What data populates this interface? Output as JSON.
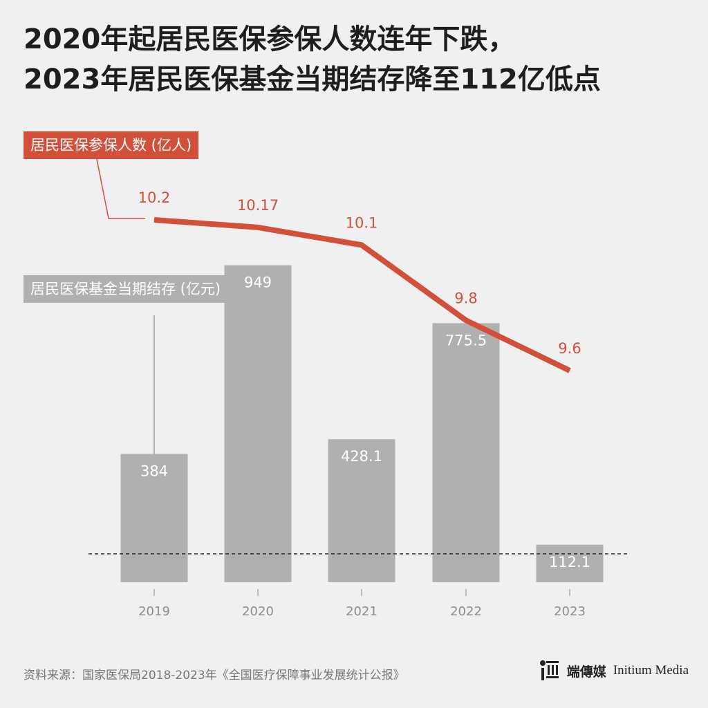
{
  "title": {
    "line1": "2020年起居民医保参保人数连年下跌，",
    "line2": "2023年居民医保基金当期结存降至112亿低点"
  },
  "colors": {
    "line": "#d2503a",
    "bar": "#b0b0b0",
    "background": "#f0f0f0",
    "axis_text": "#8c8c8c"
  },
  "chart_data": {
    "type": "bar",
    "categories": [
      "2019",
      "2020",
      "2021",
      "2022",
      "2023"
    ],
    "series": [
      {
        "name": "居民医保参保人数 (亿人)",
        "type": "line",
        "values": [
          10.2,
          10.17,
          10.1,
          9.8,
          9.6
        ],
        "labels": [
          "10.2",
          "10.17",
          "10.1",
          "9.8",
          "9.6"
        ]
      },
      {
        "name": "居民医保基金当期结存 (亿元)",
        "type": "bar",
        "values": [
          384,
          949,
          428.1,
          775.5,
          112.1
        ],
        "labels": [
          "384",
          "949",
          "428.1",
          "775.5",
          "112.1"
        ]
      }
    ],
    "reference_line": "dashed baseline",
    "grid": false
  },
  "source": "资料来源：国家医保局2018-2023年《全国医疗保障事业发展统计公报》",
  "brand": {
    "name_cn": "端傳媒",
    "name_en": "Initium Media"
  }
}
